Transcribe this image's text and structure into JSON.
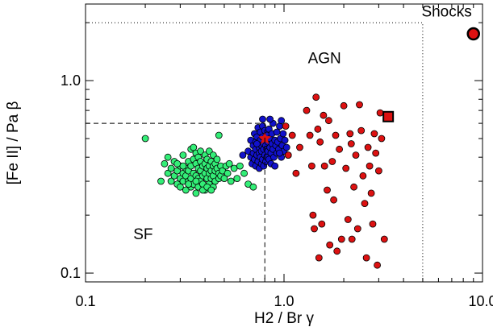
{
  "chart_data": {
    "type": "scatter",
    "title": "",
    "xlabel": "H2 / Br γ",
    "ylabel": "[Fe II] / Pa β",
    "x_scale": "log",
    "y_scale": "log",
    "xlim": [
      0.1,
      10.0
    ],
    "ylim": [
      0.09,
      2.5
    ],
    "x_ticks": [
      {
        "value": 0.1,
        "label": "0.1"
      },
      {
        "value": 1.0,
        "label": "1.0"
      },
      {
        "value": 10.0,
        "label": "10.0"
      }
    ],
    "y_ticks": [
      {
        "value": 0.1,
        "label": "0.1"
      },
      {
        "value": 1.0,
        "label": "1.0"
      }
    ],
    "grid": false,
    "legend": "none",
    "region_labels": [
      {
        "text": "Shocks",
        "x": 6.6,
        "y": 2.15
      },
      {
        "text": "AGN",
        "x": 1.6,
        "y": 1.23
      },
      {
        "text": "SF",
        "x": 0.195,
        "y": 0.15
      }
    ],
    "boundaries": [
      {
        "style": "dotted",
        "points": [
          [
            0.1,
            2.0
          ],
          [
            5.0,
            2.0
          ],
          [
            5.0,
            0.09
          ]
        ]
      },
      {
        "style": "dashed",
        "points": [
          [
            0.1,
            0.6
          ],
          [
            0.8,
            0.6
          ],
          [
            0.8,
            0.09
          ]
        ]
      }
    ],
    "series": [
      {
        "color": "#33ee77",
        "marker": "circle",
        "points": [
          [
            0.2,
            0.5
          ],
          [
            0.24,
            0.3
          ],
          [
            0.25,
            0.37
          ],
          [
            0.26,
            0.4
          ],
          [
            0.26,
            0.33
          ],
          [
            0.27,
            0.35
          ],
          [
            0.27,
            0.3
          ],
          [
            0.28,
            0.38
          ],
          [
            0.28,
            0.32
          ],
          [
            0.29,
            0.34
          ],
          [
            0.29,
            0.29
          ],
          [
            0.3,
            0.36
          ],
          [
            0.3,
            0.31
          ],
          [
            0.3,
            0.28
          ],
          [
            0.31,
            0.41
          ],
          [
            0.31,
            0.33
          ],
          [
            0.31,
            0.3
          ],
          [
            0.32,
            0.35
          ],
          [
            0.32,
            0.32
          ],
          [
            0.32,
            0.27
          ],
          [
            0.33,
            0.38
          ],
          [
            0.33,
            0.34
          ],
          [
            0.33,
            0.3
          ],
          [
            0.34,
            0.44
          ],
          [
            0.34,
            0.36
          ],
          [
            0.34,
            0.31
          ],
          [
            0.34,
            0.28
          ],
          [
            0.35,
            0.45
          ],
          [
            0.35,
            0.39
          ],
          [
            0.35,
            0.33
          ],
          [
            0.35,
            0.29
          ],
          [
            0.36,
            0.42
          ],
          [
            0.36,
            0.37
          ],
          [
            0.36,
            0.32
          ],
          [
            0.36,
            0.26
          ],
          [
            0.37,
            0.4
          ],
          [
            0.37,
            0.35
          ],
          [
            0.37,
            0.31
          ],
          [
            0.37,
            0.28
          ],
          [
            0.38,
            0.43
          ],
          [
            0.38,
            0.38
          ],
          [
            0.38,
            0.34
          ],
          [
            0.38,
            0.3
          ],
          [
            0.39,
            0.36
          ],
          [
            0.39,
            0.32
          ],
          [
            0.39,
            0.29
          ],
          [
            0.4,
            0.41
          ],
          [
            0.4,
            0.37
          ],
          [
            0.4,
            0.33
          ],
          [
            0.4,
            0.27
          ],
          [
            0.41,
            0.39
          ],
          [
            0.41,
            0.35
          ],
          [
            0.41,
            0.31
          ],
          [
            0.42,
            0.43
          ],
          [
            0.42,
            0.36
          ],
          [
            0.42,
            0.33
          ],
          [
            0.42,
            0.29
          ],
          [
            0.43,
            0.38
          ],
          [
            0.43,
            0.34
          ],
          [
            0.43,
            0.31
          ],
          [
            0.44,
            0.41
          ],
          [
            0.44,
            0.36
          ],
          [
            0.44,
            0.32
          ],
          [
            0.44,
            0.28
          ],
          [
            0.45,
            0.37
          ],
          [
            0.45,
            0.34
          ],
          [
            0.45,
            0.3
          ],
          [
            0.46,
            0.39
          ],
          [
            0.46,
            0.35
          ],
          [
            0.47,
            0.33
          ],
          [
            0.47,
            0.31
          ],
          [
            0.48,
            0.36
          ],
          [
            0.48,
            0.32
          ],
          [
            0.49,
            0.34
          ],
          [
            0.5,
            0.31
          ],
          [
            0.51,
            0.36
          ],
          [
            0.52,
            0.33
          ],
          [
            0.54,
            0.3
          ],
          [
            0.56,
            0.35
          ],
          [
            0.58,
            0.31
          ],
          [
            0.6,
            0.36
          ],
          [
            0.63,
            0.33
          ],
          [
            0.66,
            0.29
          ],
          [
            0.7,
            0.28
          ],
          [
            0.47,
            0.52
          ],
          [
            0.33,
            0.29
          ],
          [
            0.39,
            0.27
          ],
          [
            0.36,
            0.3
          ],
          [
            0.31,
            0.36
          ],
          [
            0.53,
            0.37
          ],
          [
            0.29,
            0.37
          ],
          [
            0.41,
            0.28
          ],
          [
            0.43,
            0.27
          ]
        ]
      },
      {
        "color": "#1111cc",
        "marker": "circle",
        "points": [
          [
            0.66,
            0.43
          ],
          [
            0.68,
            0.49
          ],
          [
            0.68,
            0.4
          ],
          [
            0.69,
            0.37
          ],
          [
            0.7,
            0.46
          ],
          [
            0.7,
            0.42
          ],
          [
            0.71,
            0.53
          ],
          [
            0.71,
            0.39
          ],
          [
            0.72,
            0.48
          ],
          [
            0.72,
            0.44
          ],
          [
            0.72,
            0.36
          ],
          [
            0.73,
            0.51
          ],
          [
            0.73,
            0.41
          ],
          [
            0.74,
            0.57
          ],
          [
            0.74,
            0.47
          ],
          [
            0.74,
            0.38
          ],
          [
            0.75,
            0.45
          ],
          [
            0.75,
            0.42
          ],
          [
            0.75,
            0.35
          ],
          [
            0.76,
            0.54
          ],
          [
            0.76,
            0.49
          ],
          [
            0.76,
            0.4
          ],
          [
            0.77,
            0.46
          ],
          [
            0.77,
            0.43
          ],
          [
            0.77,
            0.37
          ],
          [
            0.78,
            0.58
          ],
          [
            0.78,
            0.51
          ],
          [
            0.78,
            0.39
          ],
          [
            0.79,
            0.47
          ],
          [
            0.79,
            0.44
          ],
          [
            0.79,
            0.36
          ],
          [
            0.8,
            0.55
          ],
          [
            0.8,
            0.5
          ],
          [
            0.8,
            0.41
          ],
          [
            0.81,
            0.46
          ],
          [
            0.81,
            0.38
          ],
          [
            0.82,
            0.52
          ],
          [
            0.82,
            0.44
          ],
          [
            0.82,
            0.4
          ],
          [
            0.83,
            0.48
          ],
          [
            0.83,
            0.43
          ],
          [
            0.84,
            0.56
          ],
          [
            0.84,
            0.39
          ],
          [
            0.85,
            0.5
          ],
          [
            0.85,
            0.45
          ],
          [
            0.86,
            0.42
          ],
          [
            0.86,
            0.37
          ],
          [
            0.87,
            0.53
          ],
          [
            0.87,
            0.47
          ],
          [
            0.88,
            0.6
          ],
          [
            0.88,
            0.44
          ],
          [
            0.89,
            0.4
          ],
          [
            0.9,
            0.49
          ],
          [
            0.9,
            0.36
          ],
          [
            0.91,
            0.46
          ],
          [
            0.92,
            0.54
          ],
          [
            0.92,
            0.42
          ],
          [
            0.93,
            0.48
          ],
          [
            0.94,
            0.44
          ],
          [
            0.95,
            0.58
          ],
          [
            0.96,
            0.5
          ],
          [
            0.97,
            0.4
          ],
          [
            0.98,
            0.46
          ],
          [
            0.99,
            0.53
          ],
          [
            1.0,
            0.43
          ],
          [
            1.01,
            0.49
          ],
          [
            1.03,
            0.45
          ],
          [
            1.05,
            0.41
          ],
          [
            0.62,
            0.41
          ],
          [
            0.97,
            0.62
          ],
          [
            0.78,
            0.63
          ],
          [
            0.85,
            0.63
          ],
          [
            0.95,
            0.42
          ],
          [
            0.73,
            0.47
          ]
        ]
      },
      {
        "color": "#dd1111",
        "marker": "circle",
        "points": [
          [
            1.02,
            0.58
          ],
          [
            1.05,
            0.41
          ],
          [
            1.1,
            0.52
          ],
          [
            1.15,
            0.33
          ],
          [
            1.2,
            0.45
          ],
          [
            1.3,
            0.7
          ],
          [
            1.35,
            0.52
          ],
          [
            1.38,
            0.36
          ],
          [
            1.4,
            0.2
          ],
          [
            1.42,
            0.17
          ],
          [
            1.45,
            0.82
          ],
          [
            1.48,
            0.56
          ],
          [
            1.5,
            0.12
          ],
          [
            1.52,
            0.48
          ],
          [
            1.55,
            0.18
          ],
          [
            1.58,
            0.66
          ],
          [
            1.6,
            0.36
          ],
          [
            1.65,
            0.27
          ],
          [
            1.7,
            0.14
          ],
          [
            1.75,
            0.38
          ],
          [
            1.78,
            0.24
          ],
          [
            1.82,
            0.52
          ],
          [
            1.85,
            0.13
          ],
          [
            1.9,
            0.44
          ],
          [
            1.95,
            0.15
          ],
          [
            2.0,
            0.74
          ],
          [
            2.05,
            0.35
          ],
          [
            2.1,
            0.19
          ],
          [
            2.15,
            0.53
          ],
          [
            2.2,
            0.15
          ],
          [
            2.25,
            0.28
          ],
          [
            2.3,
            0.41
          ],
          [
            2.35,
            0.17
          ],
          [
            2.4,
            0.75
          ],
          [
            2.45,
            0.55
          ],
          [
            2.5,
            0.32
          ],
          [
            2.55,
            0.23
          ],
          [
            2.6,
            0.12
          ],
          [
            2.65,
            0.45
          ],
          [
            2.7,
            0.36
          ],
          [
            2.75,
            0.26
          ],
          [
            2.8,
            0.18
          ],
          [
            2.85,
            0.53
          ],
          [
            2.9,
            0.42
          ],
          [
            2.95,
            0.11
          ],
          [
            3.0,
            0.34
          ],
          [
            3.05,
            0.68
          ],
          [
            3.1,
            0.5
          ],
          [
            3.2,
            0.15
          ],
          [
            1.68,
            0.62
          ],
          [
            2.18,
            0.47
          ]
        ]
      }
    ],
    "special_points": [
      {
        "x": 0.8,
        "y": 0.5,
        "marker": "star",
        "color": "#dd1111"
      },
      {
        "x": 3.35,
        "y": 0.65,
        "marker": "square",
        "color": "#dd1111"
      },
      {
        "x": 9.0,
        "y": 1.75,
        "marker": "circle-large",
        "color": "#dd1111"
      }
    ]
  }
}
